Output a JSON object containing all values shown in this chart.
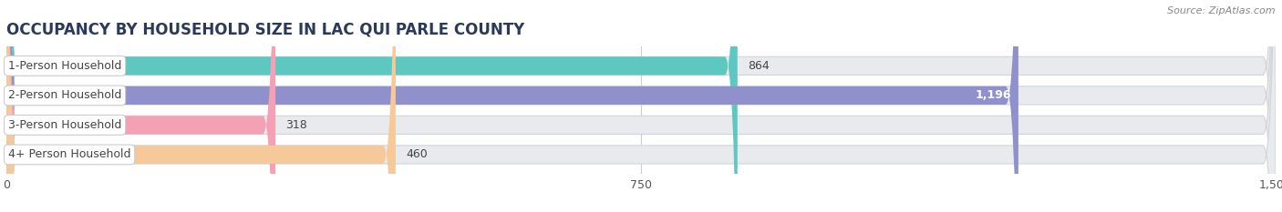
{
  "title": "OCCUPANCY BY HOUSEHOLD SIZE IN LAC QUI PARLE COUNTY",
  "source": "Source: ZipAtlas.com",
  "categories": [
    "1-Person Household",
    "2-Person Household",
    "3-Person Household",
    "4+ Person Household"
  ],
  "values": [
    864,
    1196,
    318,
    460
  ],
  "bar_colors": [
    "#5CC8C0",
    "#9090CC",
    "#F4A0B5",
    "#F5C99A"
  ],
  "value_inside": [
    false,
    true,
    false,
    false
  ],
  "xlim": [
    0,
    1500
  ],
  "xticks": [
    0,
    750,
    1500
  ],
  "background_color": "#ffffff",
  "bar_bg_color": "#e8eaee",
  "title_fontsize": 12,
  "source_fontsize": 8,
  "label_fontsize": 9,
  "value_fontsize": 9,
  "figsize": [
    14.06,
    2.33
  ],
  "dpi": 100
}
